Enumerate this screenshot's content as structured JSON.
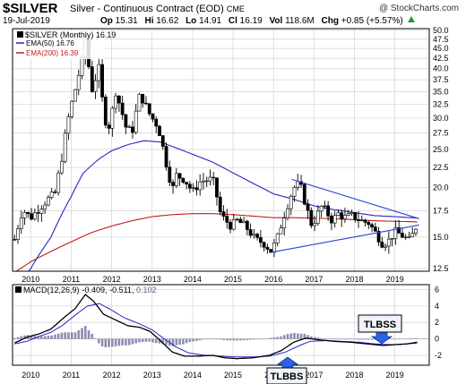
{
  "header": {
    "symbol": "$SILVER",
    "name": "Silver - Continuous Contract (EOD)",
    "exchange": "CME",
    "copyright": "@ StockCharts.com",
    "date": "19-Jul-2019",
    "quote": {
      "open_label": "Op",
      "open": "15.31",
      "high_label": "Hi",
      "high": "16.62",
      "low_label": "Lo",
      "low": "14.91",
      "close_label": "Cl",
      "close": "16.19",
      "vol_label": "Vol",
      "vol": "118.6M",
      "chg_label": "Chg",
      "chg": "+0.85 (+5.57%)"
    }
  },
  "legend": {
    "price": "$SILVER (Monthly) 16.19",
    "ema50": "EMA(50) 16.76",
    "ema200": "EMA(200) 16.39"
  },
  "macd_legend": {
    "label": "MACD(12,26,9)",
    "macd": "-0.409",
    "signal": "-0.511",
    "hist": "0.102"
  },
  "annotations": {
    "tlbss": "TLBSS",
    "tlbbs": "TLBBS"
  },
  "colors": {
    "price": "#000000",
    "ema50": "#2525c8",
    "ema200": "#c41a1a",
    "trendline": "#2a3fd6",
    "hist": "#8c8cb4",
    "grid": "#d4d4d4",
    "arrow": "#2a63e6",
    "box_fill": "#eef3fb"
  },
  "chart_data": [
    {
      "type": "ohlc",
      "title": "$SILVER (Monthly)",
      "yscale": "log",
      "ylim": [
        12.3,
        50.5
      ],
      "xlim": [
        2009.55,
        2019.85
      ],
      "y_ticks": [
        12.5,
        15.0,
        17.5,
        20.0,
        22.5,
        25.0,
        27.5,
        30.0,
        32.5,
        35.0,
        37.5,
        40.0,
        42.5,
        45.0,
        47.5,
        50.0
      ],
      "x_ticks": [
        "2010",
        "2011",
        "2012",
        "2013",
        "2014",
        "2015",
        "2016",
        "2017",
        "2018",
        "2019"
      ],
      "grid": true,
      "legend_position": "top-left",
      "close_anchors": [
        [
          2009.6,
          14.8
        ],
        [
          2009.8,
          17.6
        ],
        [
          2010.0,
          16.8
        ],
        [
          2010.2,
          17.7
        ],
        [
          2010.4,
          18.6
        ],
        [
          2010.6,
          19.4
        ],
        [
          2010.75,
          23.2
        ],
        [
          2010.95,
          30.7
        ],
        [
          2011.1,
          35.5
        ],
        [
          2011.3,
          43.0
        ],
        [
          2011.35,
          47.5
        ],
        [
          2011.5,
          35.0
        ],
        [
          2011.7,
          40.5
        ],
        [
          2011.8,
          30.0
        ],
        [
          2011.95,
          28.5
        ],
        [
          2012.1,
          35.0
        ],
        [
          2012.35,
          28.5
        ],
        [
          2012.5,
          27.5
        ],
        [
          2012.7,
          34.5
        ],
        [
          2012.95,
          30.5
        ],
        [
          2013.15,
          28.5
        ],
        [
          2013.35,
          23.0
        ],
        [
          2013.5,
          19.7
        ],
        [
          2013.6,
          21.5
        ],
        [
          2013.8,
          21.0
        ],
        [
          2014.0,
          19.5
        ],
        [
          2014.2,
          20.8
        ],
        [
          2014.5,
          21.0
        ],
        [
          2014.7,
          17.0
        ],
        [
          2014.95,
          16.0
        ],
        [
          2015.1,
          16.5
        ],
        [
          2015.3,
          16.0
        ],
        [
          2015.55,
          14.8
        ],
        [
          2015.75,
          14.5
        ],
        [
          2015.95,
          13.8
        ],
        [
          2016.1,
          15.0
        ],
        [
          2016.3,
          17.5
        ],
        [
          2016.5,
          20.0
        ],
        [
          2016.65,
          20.5
        ],
        [
          2016.8,
          18.0
        ],
        [
          2016.95,
          16.0
        ],
        [
          2017.2,
          18.0
        ],
        [
          2017.45,
          16.5
        ],
        [
          2017.6,
          17.2
        ],
        [
          2017.75,
          16.8
        ],
        [
          2017.95,
          17.0
        ],
        [
          2018.15,
          16.5
        ],
        [
          2018.35,
          16.3
        ],
        [
          2018.5,
          15.5
        ],
        [
          2018.7,
          14.4
        ],
        [
          2018.85,
          14.7
        ],
        [
          2019.0,
          15.5
        ],
        [
          2019.15,
          15.2
        ],
        [
          2019.35,
          14.7
        ],
        [
          2019.45,
          15.3
        ],
        [
          2019.55,
          16.2
        ]
      ],
      "ema50_anchors": [
        [
          2009.6,
          11.0
        ],
        [
          2010.0,
          12.5
        ],
        [
          2010.5,
          15.0
        ],
        [
          2011.0,
          19.0
        ],
        [
          2011.3,
          21.8
        ],
        [
          2011.7,
          23.7
        ],
        [
          2012.0,
          24.8
        ],
        [
          2012.4,
          25.7
        ],
        [
          2012.8,
          26.3
        ],
        [
          2013.2,
          26.1
        ],
        [
          2013.6,
          25.2
        ],
        [
          2014.0,
          24.3
        ],
        [
          2014.5,
          23.2
        ],
        [
          2015.0,
          21.8
        ],
        [
          2015.5,
          20.5
        ],
        [
          2016.0,
          19.3
        ],
        [
          2016.5,
          18.7
        ],
        [
          2017.0,
          18.0
        ],
        [
          2017.5,
          17.6
        ],
        [
          2018.0,
          17.3
        ],
        [
          2018.5,
          17.0
        ],
        [
          2019.0,
          16.9
        ],
        [
          2019.55,
          16.76
        ]
      ],
      "ema200_anchors": [
        [
          2009.6,
          12.2
        ],
        [
          2010.0,
          13.0
        ],
        [
          2010.5,
          13.8
        ],
        [
          2011.0,
          14.6
        ],
        [
          2011.5,
          15.4
        ],
        [
          2012.0,
          16.0
        ],
        [
          2012.5,
          16.5
        ],
        [
          2013.0,
          16.9
        ],
        [
          2013.5,
          17.1
        ],
        [
          2014.0,
          17.2
        ],
        [
          2014.5,
          17.2
        ],
        [
          2015.0,
          17.1
        ],
        [
          2015.5,
          16.95
        ],
        [
          2016.0,
          16.8
        ],
        [
          2016.5,
          16.8
        ],
        [
          2017.0,
          16.75
        ],
        [
          2017.5,
          16.7
        ],
        [
          2018.0,
          16.6
        ],
        [
          2018.5,
          16.5
        ],
        [
          2019.0,
          16.45
        ],
        [
          2019.55,
          16.39
        ]
      ],
      "trendlines": [
        {
          "x1": 2016.45,
          "y1": 21.0,
          "x2": 2019.6,
          "y2": 16.7
        },
        {
          "x1": 2015.9,
          "y1": 13.7,
          "x2": 2019.6,
          "y2": 16.1
        }
      ]
    },
    {
      "type": "line",
      "title": "MACD(12,26,9)",
      "ylim": [
        -3.2,
        6.6
      ],
      "y_ticks": [
        -2,
        0,
        2,
        4,
        6
      ],
      "x_ticks": [
        "2010",
        "2011",
        "2012",
        "2013",
        "2014",
        "2015",
        "2016",
        "2017",
        "2018",
        "2019"
      ],
      "macd_anchors": [
        [
          2009.6,
          -0.5
        ],
        [
          2009.9,
          0.2
        ],
        [
          2010.2,
          0.6
        ],
        [
          2010.5,
          1.2
        ],
        [
          2010.8,
          2.5
        ],
        [
          2011.1,
          3.7
        ],
        [
          2011.35,
          5.4
        ],
        [
          2011.55,
          4.6
        ],
        [
          2011.8,
          3.0
        ],
        [
          2012.1,
          2.3
        ],
        [
          2012.4,
          1.6
        ],
        [
          2012.7,
          1.4
        ],
        [
          2012.95,
          0.9
        ],
        [
          2013.2,
          -0.2
        ],
        [
          2013.5,
          -1.6
        ],
        [
          2013.8,
          -2.1
        ],
        [
          2014.1,
          -2.1
        ],
        [
          2014.5,
          -2.0
        ],
        [
          2014.8,
          -2.3
        ],
        [
          2015.1,
          -2.4
        ],
        [
          2015.5,
          -2.3
        ],
        [
          2015.9,
          -2.0
        ],
        [
          2016.2,
          -1.4
        ],
        [
          2016.5,
          -0.4
        ],
        [
          2016.8,
          0.1
        ],
        [
          2017.1,
          -0.1
        ],
        [
          2017.5,
          -0.3
        ],
        [
          2017.9,
          -0.4
        ],
        [
          2018.3,
          -0.6
        ],
        [
          2018.7,
          -0.8
        ],
        [
          2019.0,
          -0.7
        ],
        [
          2019.3,
          -0.6
        ],
        [
          2019.55,
          -0.41
        ]
      ],
      "signal_anchors": [
        [
          2009.6,
          -0.6
        ],
        [
          2009.9,
          -0.3
        ],
        [
          2010.2,
          0.3
        ],
        [
          2010.5,
          0.8
        ],
        [
          2010.8,
          1.7
        ],
        [
          2011.1,
          2.9
        ],
        [
          2011.4,
          4.0
        ],
        [
          2011.7,
          4.3
        ],
        [
          2012.0,
          3.5
        ],
        [
          2012.3,
          2.6
        ],
        [
          2012.7,
          1.8
        ],
        [
          2013.0,
          1.1
        ],
        [
          2013.3,
          0.0
        ],
        [
          2013.6,
          -1.0
        ],
        [
          2013.9,
          -1.7
        ],
        [
          2014.3,
          -2.0
        ],
        [
          2014.7,
          -2.1
        ],
        [
          2015.1,
          -2.2
        ],
        [
          2015.5,
          -2.2
        ],
        [
          2015.9,
          -2.1
        ],
        [
          2016.3,
          -1.6
        ],
        [
          2016.6,
          -0.9
        ],
        [
          2016.9,
          -0.3
        ],
        [
          2017.3,
          -0.2
        ],
        [
          2017.7,
          -0.3
        ],
        [
          2018.1,
          -0.4
        ],
        [
          2018.5,
          -0.6
        ],
        [
          2018.9,
          -0.7
        ],
        [
          2019.2,
          -0.65
        ],
        [
          2019.55,
          -0.51
        ]
      ],
      "hist_note": "histogram = macd - signal"
    }
  ]
}
